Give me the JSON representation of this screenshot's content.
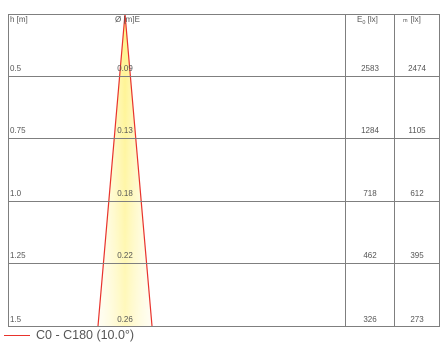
{
  "headers": {
    "height": "h [m]",
    "diameter": "Ø [m]",
    "e_label": "E",
    "e0_base": "E",
    "e0_sub": "0",
    "e0_unit": "[lx]",
    "em_sub": "m",
    "em_unit": "[lx]"
  },
  "rows": [
    {
      "h": "0.5",
      "d": "0.09",
      "e0": "2583",
      "em": "2474"
    },
    {
      "h": "0.75",
      "d": "0.13",
      "e0": "1284",
      "em": "1105"
    },
    {
      "h": "1.0",
      "d": "0.18",
      "e0": "718",
      "em": "612"
    },
    {
      "h": "1.25",
      "d": "0.22",
      "e0": "462",
      "em": "395"
    },
    {
      "h": "1.5",
      "d": "0.26",
      "e0": "326",
      "em": "273"
    }
  ],
  "beam": {
    "angle_deg": 10.0,
    "line_color": "#e8332c",
    "fill_color": "#fff5a8"
  },
  "legend": {
    "label": "C0 - C180 (10.0°)",
    "color": "#e8332c"
  },
  "colors": {
    "grid": "#7f7f7f",
    "text": "#555555"
  }
}
